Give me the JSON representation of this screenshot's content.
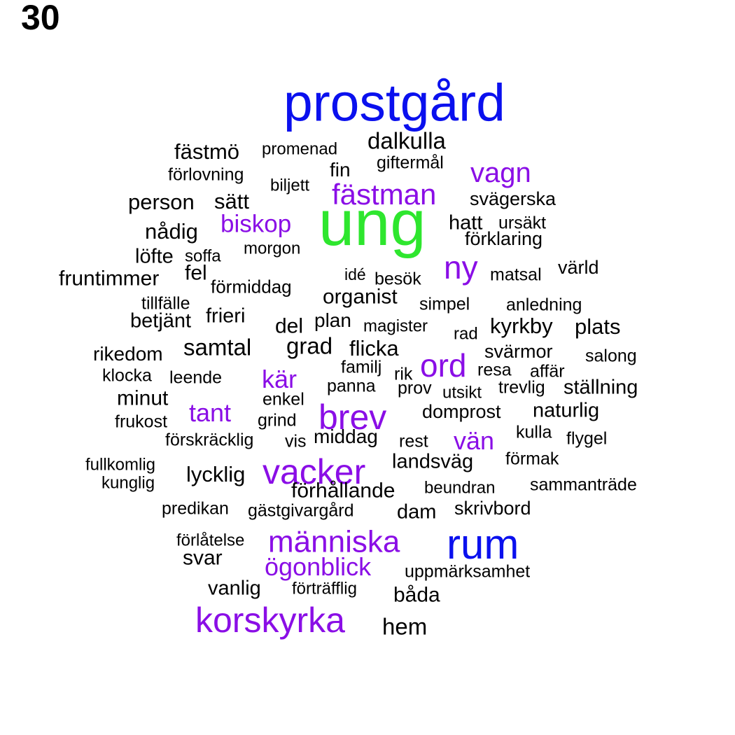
{
  "number": "30",
  "colors": {
    "black": "#000000",
    "purple": "#8a0ee6",
    "blue": "#0a10ee",
    "green": "#2ee62e"
  },
  "words": [
    {
      "text": "prostgård",
      "color": "blue"
    },
    {
      "text": "ung",
      "color": "green"
    },
    {
      "text": "rum",
      "color": "blue"
    },
    {
      "text": "vacker",
      "color": "purple"
    },
    {
      "text": "människa",
      "color": "purple"
    },
    {
      "text": "korskyrka",
      "color": "purple"
    },
    {
      "text": "fästman",
      "color": "purple"
    },
    {
      "text": "brev",
      "color": "purple"
    },
    {
      "text": "vagn",
      "color": "purple"
    },
    {
      "text": "ny",
      "color": "purple"
    },
    {
      "text": "ord",
      "color": "purple"
    },
    {
      "text": "ögonblick",
      "color": "purple"
    },
    {
      "text": "biskop",
      "color": "purple"
    },
    {
      "text": "kär",
      "color": "purple"
    },
    {
      "text": "tant",
      "color": "purple"
    },
    {
      "text": "vän",
      "color": "purple"
    },
    {
      "text": "dalkulla",
      "color": "black"
    },
    {
      "text": "fästmö",
      "color": "black"
    },
    {
      "text": "promenad",
      "color": "black"
    },
    {
      "text": "giftermål",
      "color": "black"
    },
    {
      "text": "förlovning",
      "color": "black"
    },
    {
      "text": "fin",
      "color": "black"
    },
    {
      "text": "biljett",
      "color": "black"
    },
    {
      "text": "person",
      "color": "black"
    },
    {
      "text": "sätt",
      "color": "black"
    },
    {
      "text": "svägerska",
      "color": "black"
    },
    {
      "text": "nådig",
      "color": "black"
    },
    {
      "text": "hatt",
      "color": "black"
    },
    {
      "text": "ursäkt",
      "color": "black"
    },
    {
      "text": "förklaring",
      "color": "black"
    },
    {
      "text": "morgon",
      "color": "black"
    },
    {
      "text": "löfte",
      "color": "black"
    },
    {
      "text": "soffa",
      "color": "black"
    },
    {
      "text": "fruntimmer",
      "color": "black"
    },
    {
      "text": "fel",
      "color": "black"
    },
    {
      "text": "idé",
      "color": "black"
    },
    {
      "text": "besök",
      "color": "black"
    },
    {
      "text": "matsal",
      "color": "black"
    },
    {
      "text": "värld",
      "color": "black"
    },
    {
      "text": "förmiddag",
      "color": "black"
    },
    {
      "text": "organist",
      "color": "black"
    },
    {
      "text": "tillfälle",
      "color": "black"
    },
    {
      "text": "simpel",
      "color": "black"
    },
    {
      "text": "anledning",
      "color": "black"
    },
    {
      "text": "betjänt",
      "color": "black"
    },
    {
      "text": "frieri",
      "color": "black"
    },
    {
      "text": "del",
      "color": "black"
    },
    {
      "text": "plan",
      "color": "black"
    },
    {
      "text": "magister",
      "color": "black"
    },
    {
      "text": "rad",
      "color": "black"
    },
    {
      "text": "kyrkby",
      "color": "black"
    },
    {
      "text": "plats",
      "color": "black"
    },
    {
      "text": "rikedom",
      "color": "black"
    },
    {
      "text": "samtal",
      "color": "black"
    },
    {
      "text": "grad",
      "color": "black"
    },
    {
      "text": "flicka",
      "color": "black"
    },
    {
      "text": "svärmor",
      "color": "black"
    },
    {
      "text": "salong",
      "color": "black"
    },
    {
      "text": "klocka",
      "color": "black"
    },
    {
      "text": "familj",
      "color": "black"
    },
    {
      "text": "rik",
      "color": "black"
    },
    {
      "text": "resa",
      "color": "black"
    },
    {
      "text": "affär",
      "color": "black"
    },
    {
      "text": "leende",
      "color": "black"
    },
    {
      "text": "panna",
      "color": "black"
    },
    {
      "text": "prov",
      "color": "black"
    },
    {
      "text": "utsikt",
      "color": "black"
    },
    {
      "text": "trevlig",
      "color": "black"
    },
    {
      "text": "ställning",
      "color": "black"
    },
    {
      "text": "minut",
      "color": "black"
    },
    {
      "text": "enkel",
      "color": "black"
    },
    {
      "text": "domprost",
      "color": "black"
    },
    {
      "text": "naturlig",
      "color": "black"
    },
    {
      "text": "frukost",
      "color": "black"
    },
    {
      "text": "grind",
      "color": "black"
    },
    {
      "text": "kulla",
      "color": "black"
    },
    {
      "text": "flygel",
      "color": "black"
    },
    {
      "text": "förskräcklig",
      "color": "black"
    },
    {
      "text": "vis",
      "color": "black"
    },
    {
      "text": "middag",
      "color": "black"
    },
    {
      "text": "rest",
      "color": "black"
    },
    {
      "text": "förmak",
      "color": "black"
    },
    {
      "text": "fullkomlig",
      "color": "black"
    },
    {
      "text": "landsväg",
      "color": "black"
    },
    {
      "text": "kunglig",
      "color": "black"
    },
    {
      "text": "lycklig",
      "color": "black"
    },
    {
      "text": "beundran",
      "color": "black"
    },
    {
      "text": "sammanträde",
      "color": "black"
    },
    {
      "text": "förhållande",
      "color": "black"
    },
    {
      "text": "predikan",
      "color": "black"
    },
    {
      "text": "gästgivargård",
      "color": "black"
    },
    {
      "text": "dam",
      "color": "black"
    },
    {
      "text": "skrivbord",
      "color": "black"
    },
    {
      "text": "förlåtelse",
      "color": "black"
    },
    {
      "text": "svar",
      "color": "black"
    },
    {
      "text": "uppmärksamhet",
      "color": "black"
    },
    {
      "text": "vanlig",
      "color": "black"
    },
    {
      "text": "förträfflig",
      "color": "black"
    },
    {
      "text": "båda",
      "color": "black"
    },
    {
      "text": "hem",
      "color": "black"
    }
  ]
}
